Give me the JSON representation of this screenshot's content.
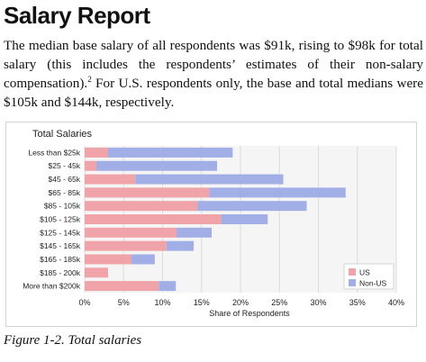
{
  "heading": "Salary Report",
  "paragraph": {
    "text": "The median base salary of all respondents was $91k, rising to $98k for total salary (this includes the respondents’ estimates of their non-salary compensation).",
    "footnote": "2",
    "text2": " For U.S. respondents only, the base and total medians were $105k and $144k, respectively."
  },
  "caption": "Figure 1-2. Total salaries",
  "chart_data": {
    "type": "bar",
    "orientation": "horizontal",
    "stacked": true,
    "title": "Total Salaries",
    "xlabel": "Share of Respondents",
    "ylabel": "",
    "xlim": [
      0,
      40
    ],
    "xticks": [
      0,
      5,
      10,
      15,
      20,
      25,
      30,
      35,
      40
    ],
    "xtick_labels": [
      "0%",
      "5%",
      "10%",
      "15%",
      "20%",
      "25%",
      "30%",
      "35%",
      "40%"
    ],
    "grid": true,
    "legend_position": "bottom-right",
    "categories": [
      "Less than $25k",
      "$25 - 45k",
      "$45 - 65k",
      "$65 - 85k",
      "$85 - 105k",
      "$105 - 125k",
      "$125 - 145k",
      "$145 - 165k",
      "$165 - 185k",
      "$185 - 200k",
      "More than $200k"
    ],
    "series": [
      {
        "name": "US",
        "color": "#f0a3a8",
        "values": [
          3.0,
          1.5,
          6.5,
          16.0,
          14.5,
          17.5,
          11.8,
          10.5,
          6.0,
          3.0,
          9.5
        ]
      },
      {
        "name": "Non-US",
        "color": "#a2aee6",
        "values": [
          16.0,
          15.5,
          19.0,
          17.5,
          14.0,
          6.0,
          4.5,
          3.5,
          3.0,
          0.0,
          2.2
        ]
      }
    ]
  }
}
